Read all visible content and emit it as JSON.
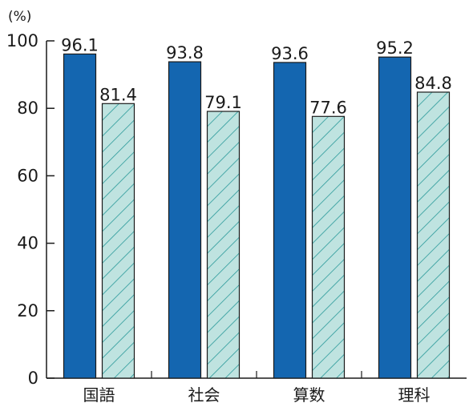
{
  "chart_data": {
    "type": "bar",
    "unit_label": "(%)",
    "categories": [
      "国語",
      "社会",
      "算数",
      "理科"
    ],
    "series": [
      {
        "values": [
          96.1,
          93.8,
          93.6,
          95.2
        ],
        "color": "#1466b0",
        "pattern": "solid"
      },
      {
        "values": [
          81.4,
          79.1,
          77.6,
          84.8
        ],
        "color": "#bfe3e0",
        "pattern": "diagonal-hatch",
        "hatch_color": "#2a9a9a"
      }
    ],
    "ylim": [
      0,
      100
    ],
    "yticks": [
      0,
      20,
      40,
      60,
      80,
      100
    ],
    "grid": false,
    "legend": "none"
  }
}
